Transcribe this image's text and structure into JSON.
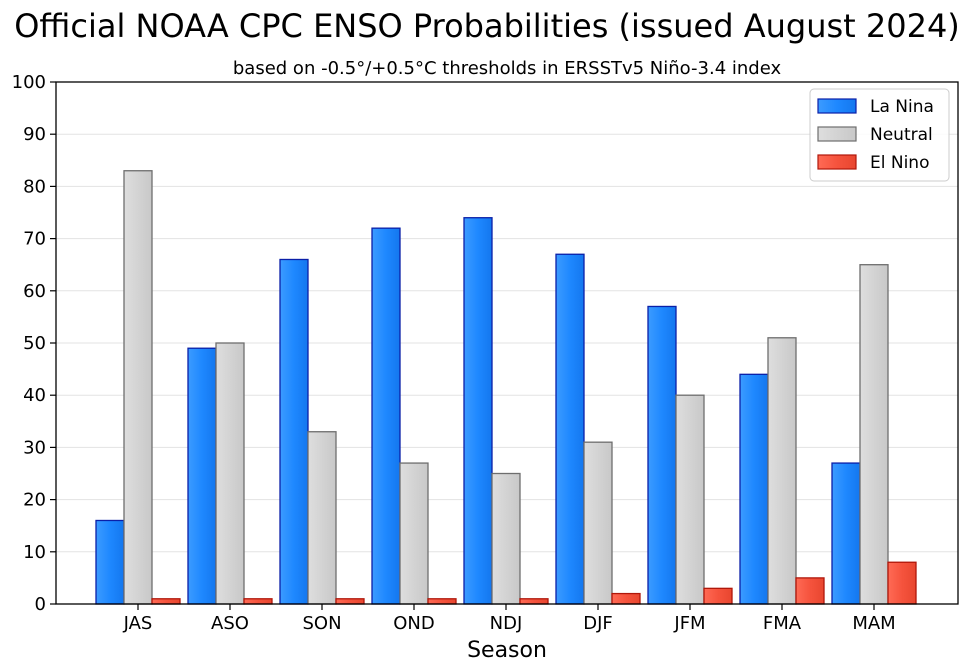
{
  "chart_data": {
    "type": "bar",
    "title": "Official NOAA CPC ENSO Probabilities (issued August 2024)",
    "subtitle": "based on -0.5°/+0.5°C thresholds in ERSSTv5 Niño-3.4 index",
    "xlabel": "Season",
    "ylabel": "",
    "ylim": [
      0,
      100
    ],
    "yticks": [
      0,
      10,
      20,
      30,
      40,
      50,
      60,
      70,
      80,
      90,
      100
    ],
    "grid": true,
    "legend": "top-right",
    "categories": [
      "JAS",
      "ASO",
      "SON",
      "OND",
      "NDJ",
      "DJF",
      "JFM",
      "FMA",
      "MAM"
    ],
    "series": [
      {
        "name": "La Nina",
        "color": "#1e88ff",
        "edge": "#0a1fa8",
        "values": [
          16,
          49,
          66,
          72,
          74,
          67,
          57,
          44,
          27
        ]
      },
      {
        "name": "Neutral",
        "color": "#d3d3d3",
        "edge": "#6e6e6e",
        "values": [
          83,
          50,
          33,
          27,
          25,
          31,
          40,
          51,
          65
        ]
      },
      {
        "name": "El Nino",
        "color": "#f5533d",
        "edge": "#b0170a",
        "values": [
          1,
          1,
          1,
          1,
          1,
          2,
          3,
          5,
          8
        ]
      }
    ]
  }
}
